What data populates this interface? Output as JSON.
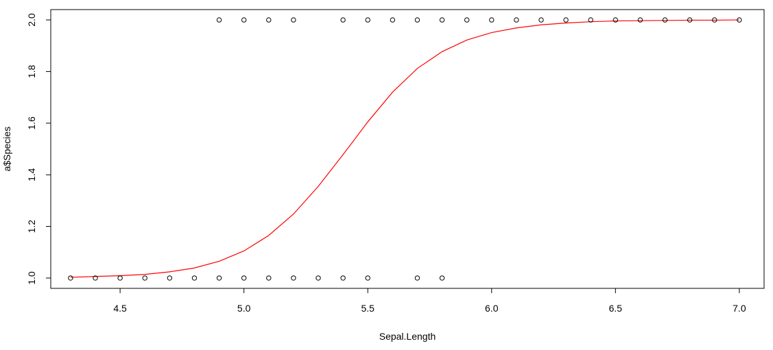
{
  "chart_data": {
    "type": "scatter",
    "xlabel": "Sepal.Length",
    "ylabel": "a$Species",
    "xlim": [
      4.22,
      7.1
    ],
    "ylim": [
      0.96,
      2.04
    ],
    "xticks": [
      {
        "value": 4.5,
        "label": "4.5"
      },
      {
        "value": 5.0,
        "label": "5.0"
      },
      {
        "value": 5.5,
        "label": "5.5"
      },
      {
        "value": 6.0,
        "label": "6.0"
      },
      {
        "value": 6.5,
        "label": "6.5"
      },
      {
        "value": 7.0,
        "label": "7.0"
      }
    ],
    "yticks": [
      {
        "value": 1.0,
        "label": "1.0"
      },
      {
        "value": 1.2,
        "label": "1.2"
      },
      {
        "value": 1.4,
        "label": "1.4"
      },
      {
        "value": 1.6,
        "label": "1.6"
      },
      {
        "value": 1.8,
        "label": "1.8"
      },
      {
        "value": 2.0,
        "label": "2.0"
      }
    ],
    "grid": false,
    "points": [
      {
        "x": 4.3,
        "y": 1
      },
      {
        "x": 4.4,
        "y": 1
      },
      {
        "x": 4.5,
        "y": 1
      },
      {
        "x": 4.6,
        "y": 1
      },
      {
        "x": 4.7,
        "y": 1
      },
      {
        "x": 4.8,
        "y": 1
      },
      {
        "x": 4.9,
        "y": 1
      },
      {
        "x": 5.0,
        "y": 1
      },
      {
        "x": 5.1,
        "y": 1
      },
      {
        "x": 5.2,
        "y": 1
      },
      {
        "x": 5.3,
        "y": 1
      },
      {
        "x": 5.4,
        "y": 1
      },
      {
        "x": 5.5,
        "y": 1
      },
      {
        "x": 5.7,
        "y": 1
      },
      {
        "x": 5.8,
        "y": 1
      },
      {
        "x": 4.9,
        "y": 2
      },
      {
        "x": 5.0,
        "y": 2
      },
      {
        "x": 5.1,
        "y": 2
      },
      {
        "x": 5.2,
        "y": 2
      },
      {
        "x": 5.4,
        "y": 2
      },
      {
        "x": 5.5,
        "y": 2
      },
      {
        "x": 5.6,
        "y": 2
      },
      {
        "x": 5.7,
        "y": 2
      },
      {
        "x": 5.8,
        "y": 2
      },
      {
        "x": 5.9,
        "y": 2
      },
      {
        "x": 6.0,
        "y": 2
      },
      {
        "x": 6.1,
        "y": 2
      },
      {
        "x": 6.2,
        "y": 2
      },
      {
        "x": 6.3,
        "y": 2
      },
      {
        "x": 6.4,
        "y": 2
      },
      {
        "x": 6.5,
        "y": 2
      },
      {
        "x": 6.6,
        "y": 2
      },
      {
        "x": 6.7,
        "y": 2
      },
      {
        "x": 6.8,
        "y": 2
      },
      {
        "x": 6.9,
        "y": 2
      },
      {
        "x": 7.0,
        "y": 2
      }
    ],
    "fitted_curve": {
      "color": "#ff0000",
      "x": [
        4.3,
        4.4,
        4.5,
        4.6,
        4.7,
        4.8,
        4.9,
        5.0,
        5.1,
        5.2,
        5.3,
        5.4,
        5.5,
        5.6,
        5.7,
        5.8,
        5.9,
        6.0,
        6.1,
        6.2,
        6.3,
        6.4,
        6.5,
        6.6,
        6.7,
        6.8,
        6.9,
        7.0
      ],
      "y": [
        1.003,
        1.006,
        1.009,
        1.014,
        1.024,
        1.039,
        1.065,
        1.105,
        1.165,
        1.248,
        1.355,
        1.478,
        1.605,
        1.72,
        1.812,
        1.877,
        1.922,
        1.951,
        1.969,
        1.981,
        1.988,
        1.993,
        1.996,
        1.997,
        1.998,
        1.999,
        1.999,
        2.0
      ]
    },
    "point_color": "#000000"
  }
}
